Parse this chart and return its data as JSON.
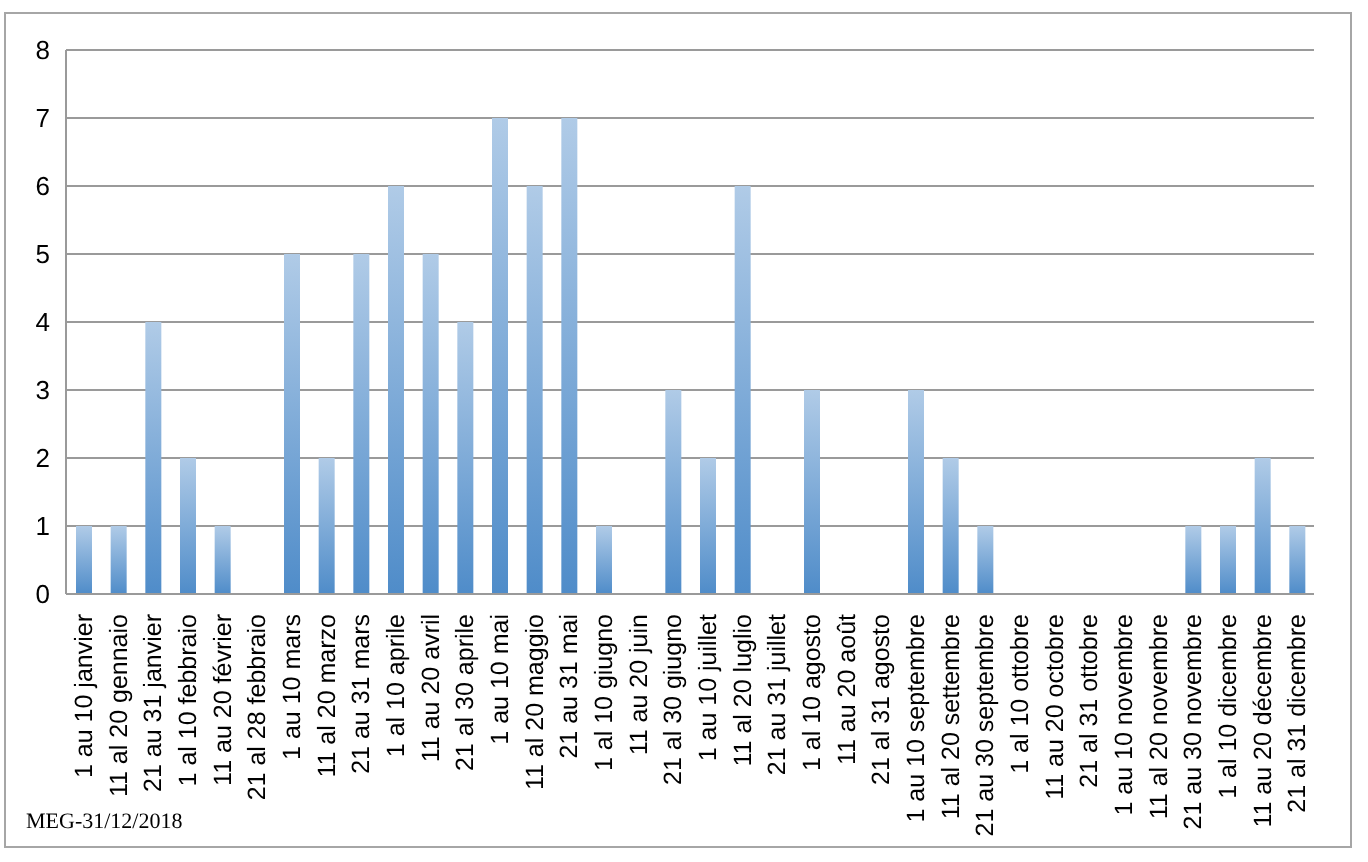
{
  "chart_data": {
    "type": "bar",
    "categories": [
      "1 au 10 janvier",
      "11 al 20 gennaio",
      "21 au 31 janvier",
      "1 al 10 febbraio",
      "11 au 20 février",
      "21 al 28 febbraio",
      "1 au 10 mars",
      "11 al 20 marzo",
      "21 au 31 mars",
      "1 al 10 aprile",
      "11 au 20 avril",
      "21 al 30 aprile",
      "1 au 10 mai",
      "11 al 20 maggio",
      "21 au 31 mai",
      "1 al 10 giugno",
      "11 au 20 juin",
      "21 al 30 giugno",
      "1 au 10 juillet",
      "11 al 20 luglio",
      "21 au 31 juillet",
      "1 al 10 agosto",
      "11 au 20 août",
      "21 al 31 agosto",
      "1 au 10 septembre",
      "11 al 20 settembre",
      "21 au 30 septembre",
      "1 al 10 ottobre",
      "11 au 20 octobre",
      "21 al 31 ottobre",
      "1 au 10 novembre",
      "11 al 20 novembre",
      "21 au 30 novembre",
      "1 al 10 dicembre",
      "11 au 20 décembre",
      "21 al 31 dicembre"
    ],
    "values": [
      1,
      1,
      4,
      2,
      1,
      0,
      5,
      2,
      5,
      6,
      5,
      4,
      7,
      6,
      7,
      1,
      0,
      3,
      2,
      6,
      0,
      3,
      0,
      0,
      3,
      2,
      1,
      0,
      0,
      0,
      0,
      0,
      1,
      1,
      2,
      1
    ],
    "color": "#4f8cc9",
    "ylim": [
      0,
      8
    ],
    "yticks": [
      0,
      1,
      2,
      3,
      4,
      5,
      6,
      7,
      8
    ],
    "grid": "y",
    "annotations": [
      "MEG-31/12/2018"
    ]
  }
}
